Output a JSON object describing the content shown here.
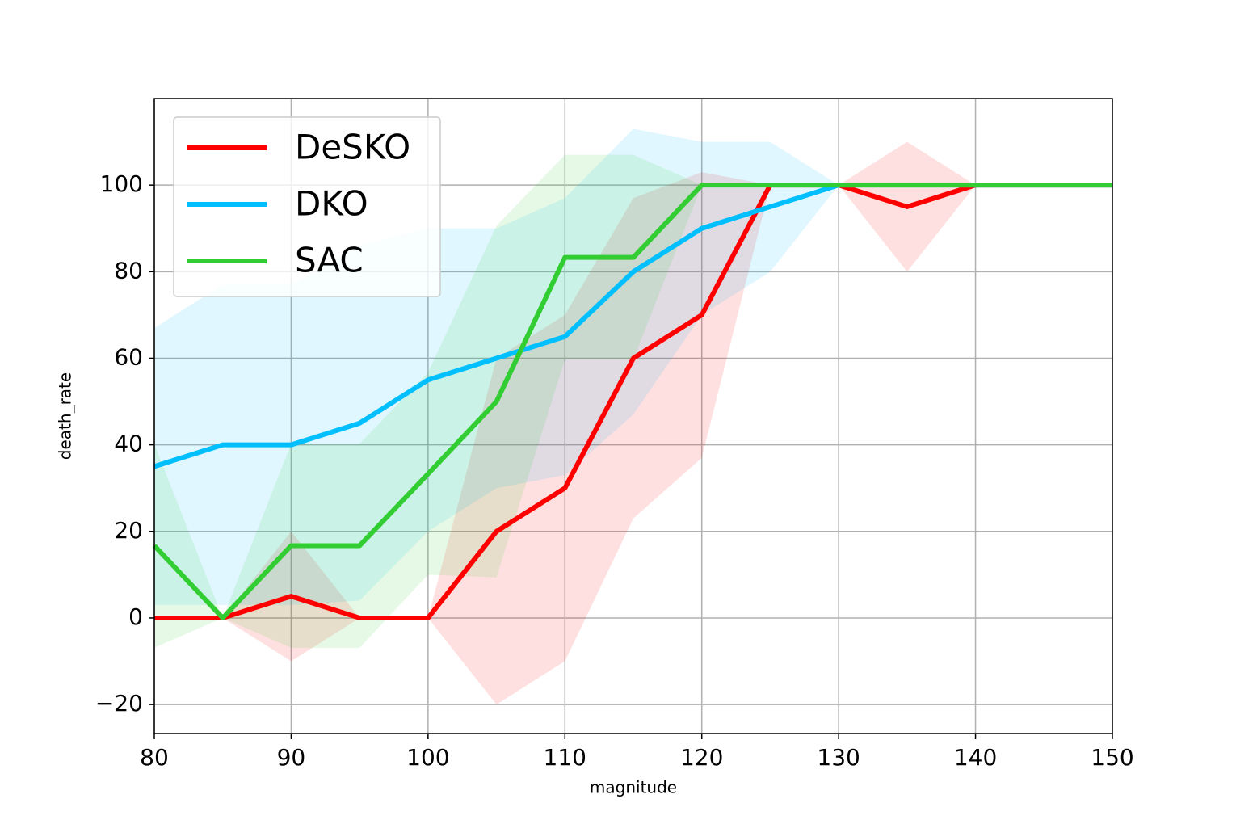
{
  "chart_data": {
    "type": "line",
    "x_label": "magnitude",
    "y_label": "death_rate",
    "x": [
      80,
      85,
      90,
      95,
      100,
      105,
      110,
      115,
      120,
      125,
      130,
      135,
      140,
      145,
      150
    ],
    "series": [
      {
        "name": "DeSKO",
        "color": "#ff0000",
        "values": [
          0,
          0,
          5,
          0,
          0,
          20,
          30,
          60,
          70,
          100,
          100,
          95,
          100,
          100,
          100
        ],
        "lower": [
          0,
          0,
          -10,
          0,
          0,
          -20,
          -10,
          23,
          37,
          100,
          100,
          80,
          100,
          100,
          100
        ],
        "upper": [
          0,
          0,
          20,
          0,
          0,
          60,
          70,
          97,
          103,
          100,
          100,
          110,
          100,
          100,
          100
        ]
      },
      {
        "name": "DKO",
        "color": "#00bfff",
        "values": [
          35,
          40,
          40,
          45,
          55,
          60,
          65,
          80,
          90,
          95,
          100,
          100,
          100,
          100,
          100
        ],
        "lower": [
          3,
          3,
          3,
          4,
          20,
          30,
          33,
          47,
          70,
          80,
          100,
          100,
          100,
          100,
          100
        ],
        "upper": [
          67,
          77,
          77,
          86,
          90,
          90,
          97,
          113,
          110,
          110,
          100,
          100,
          100,
          100,
          100
        ]
      },
      {
        "name": "SAC",
        "color": "#32cd32",
        "values": [
          16.7,
          0,
          16.7,
          16.7,
          33.3,
          50,
          83.3,
          83.3,
          100,
          100,
          100,
          100,
          100,
          100,
          100
        ],
        "lower": [
          -6.9,
          0,
          -6.9,
          -6.9,
          10,
          9.4,
          59.7,
          59.7,
          100,
          100,
          100,
          100,
          100,
          100,
          100
        ],
        "upper": [
          40.2,
          0,
          40.2,
          40.2,
          56.7,
          90.6,
          107,
          107,
          100,
          100,
          100,
          100,
          100,
          100,
          100
        ]
      }
    ],
    "xlim": [
      80,
      150
    ],
    "ylim": [
      -26.7,
      120
    ],
    "xticks": [
      80,
      90,
      100,
      110,
      120,
      130,
      140,
      150
    ],
    "yticks": [
      {
        "value": -20,
        "label": "−20"
      },
      0,
      20,
      40,
      60,
      80,
      100
    ],
    "grid": true,
    "legend": "upper left"
  }
}
